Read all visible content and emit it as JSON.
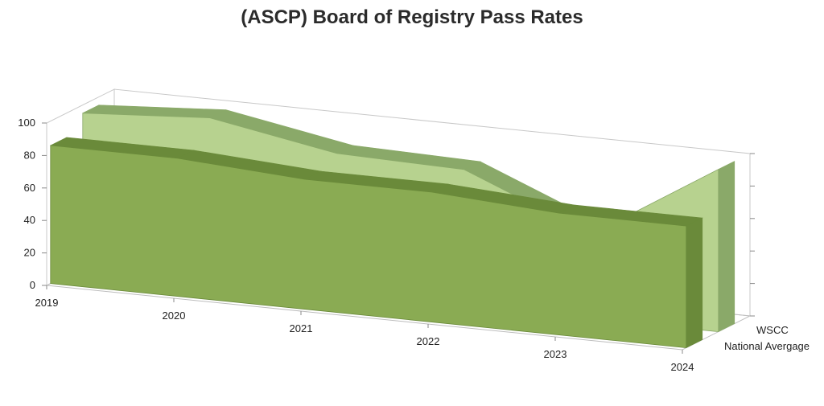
{
  "chart_data": {
    "type": "area",
    "title": "(ASCP) Board of Registry Pass Rates",
    "categories": [
      "2019",
      "2020",
      "2021",
      "2022",
      "2023",
      "2024"
    ],
    "ylim": [
      0,
      100
    ],
    "yticks": [
      "0",
      "20",
      "40",
      "60",
      "80",
      "100"
    ],
    "series": [
      {
        "name": "WSCC",
        "values": [
          95,
          100,
          86,
          84,
          52,
          100
        ],
        "color": "#b7d28f",
        "edge": "#8aa969"
      },
      {
        "name": "National Avergage",
        "values": [
          85,
          85,
          80,
          80,
          75,
          75
        ],
        "color": "#8aab53",
        "edge": "#6a8a3a"
      }
    ]
  }
}
